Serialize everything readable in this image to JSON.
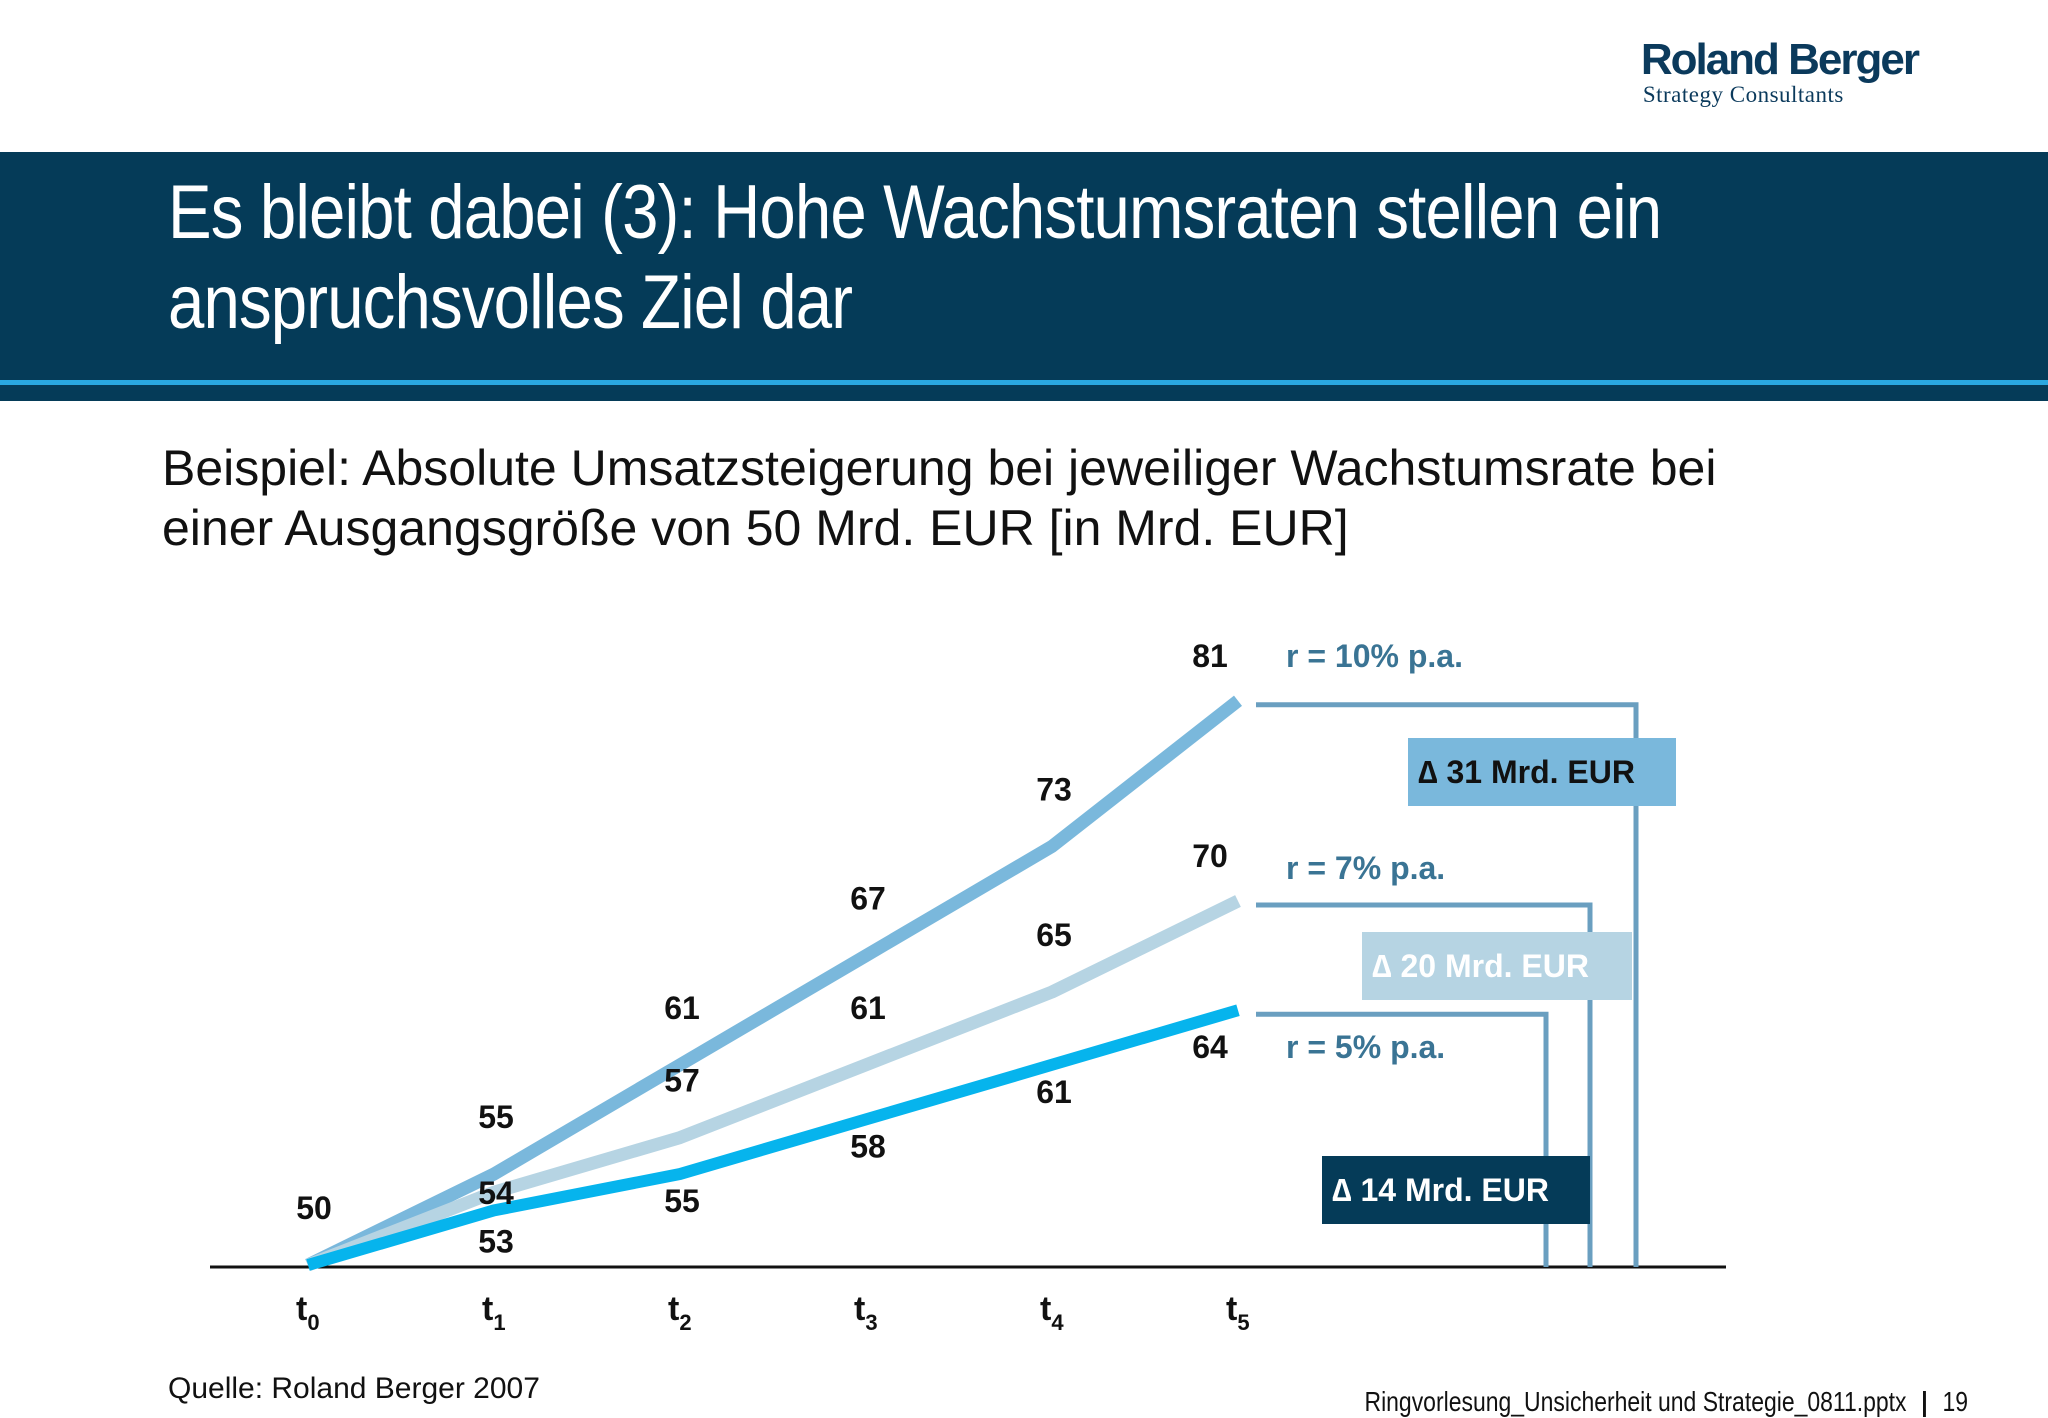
{
  "logo": {
    "brand": "Roland Berger",
    "sub": "Strategy Consultants"
  },
  "title": {
    "line1": "Es bleibt dabei (3): Hohe Wachstumsraten stellen ein",
    "line2": "anspruchsvolles Ziel dar"
  },
  "subtitle": {
    "line1": "Beispiel: Absolute Umsatzsteigerung bei jeweiliger Wachstumsrate bei",
    "line2": "einer Ausgangsgröße von 50 Mrd. EUR [in Mrd. EUR]"
  },
  "chart_data": {
    "type": "line",
    "x": [
      "t0",
      "t1",
      "t2",
      "t3",
      "t4",
      "t5"
    ],
    "x_tick_labels": [
      {
        "base": "t",
        "sub": "0"
      },
      {
        "base": "t",
        "sub": "1"
      },
      {
        "base": "t",
        "sub": "2"
      },
      {
        "base": "t",
        "sub": "3"
      },
      {
        "base": "t",
        "sub": "4"
      },
      {
        "base": "t",
        "sub": "5"
      }
    ],
    "ylim": [
      50,
      81
    ],
    "grid": false,
    "series": [
      {
        "name": "r = 10% p.a.",
        "values": [
          50,
          55,
          61,
          67,
          73,
          81
        ],
        "color": "#7ab8dc"
      },
      {
        "name": "r = 7% p.a.",
        "values": [
          50,
          54,
          57,
          61,
          65,
          70
        ],
        "color": "#b6d4e3"
      },
      {
        "name": "r = 5% p.a.",
        "values": [
          50,
          53,
          55,
          58,
          61,
          64
        ],
        "color": "#06b4ed"
      }
    ],
    "start_label": "50",
    "deltas": [
      {
        "label": "∆ 31 Mrd. EUR",
        "series": 0,
        "box_color": "#7ab8dc",
        "text_color": "#111111"
      },
      {
        "label": "∆ 20 Mrd. EUR",
        "series": 1,
        "box_color": "#b6d4e3",
        "text_color": "#ffffff"
      },
      {
        "label": "∆ 14 Mrd. EUR",
        "series": 2,
        "box_color": "#053b58",
        "text_color": "#ffffff"
      }
    ],
    "bracket_color": "#6a9fc0",
    "series_label_color": "#3a7494"
  },
  "footer": {
    "source": "Quelle: Roland Berger 2007",
    "file": "Ringvorlesung_Unsicherheit und Strategie_0811.pptx",
    "page": "19"
  }
}
